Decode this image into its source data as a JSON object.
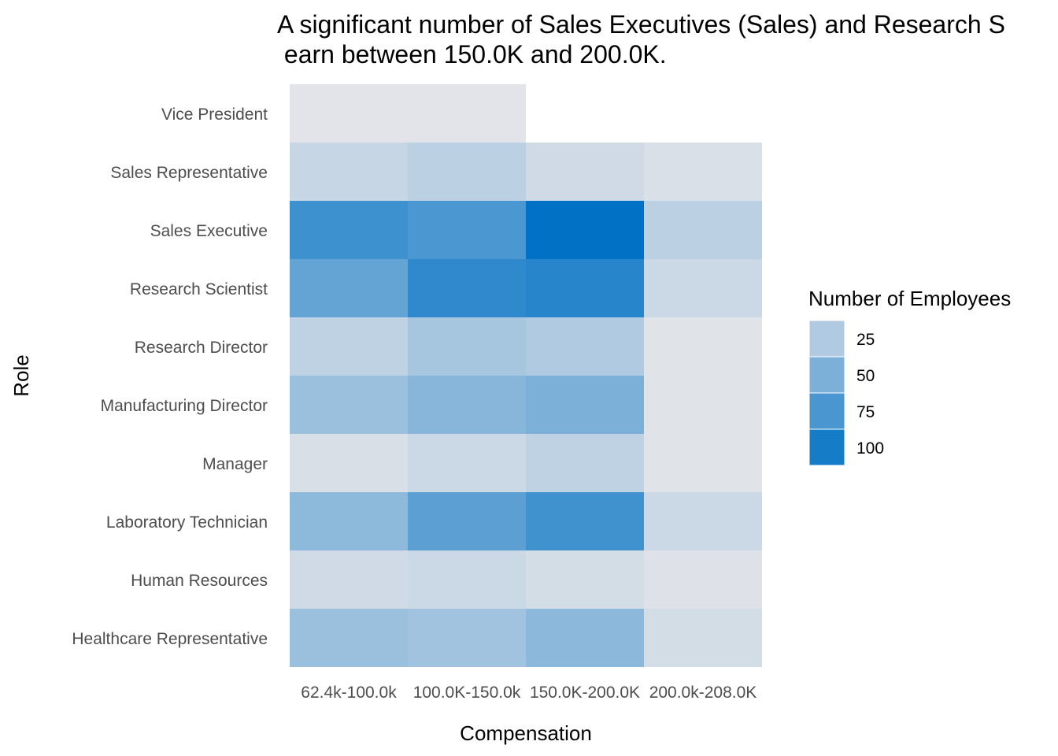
{
  "chart_data": {
    "type": "heatmap",
    "title_lines": [
      "A significant number of Sales Executives (Sales) and Research S",
      " earn between 150.0K and 200.0K."
    ],
    "xlabel": "Compensation",
    "ylabel": "Role",
    "x_categories": [
      "62.4k-100.0k",
      "100.0K-150.0k",
      "150.0K-200.0K",
      "200.0k-208.0K"
    ],
    "y_categories": [
      "Vice President",
      "Sales Representative",
      "Sales Executive",
      "Research Scientist",
      "Research Director",
      "Manufacturing Director",
      "Manager",
      "Laboratory Technician",
      "Human Resources",
      "Healthcare Representative"
    ],
    "values": [
      [
        1,
        1,
        null,
        null
      ],
      [
        14,
        20,
        10,
        5
      ],
      [
        80,
        74,
        110,
        20
      ],
      [
        62,
        87,
        91,
        12
      ],
      [
        18,
        30,
        25,
        2
      ],
      [
        35,
        45,
        50,
        2
      ],
      [
        6,
        12,
        18,
        2
      ],
      [
        42,
        66,
        79,
        12
      ],
      [
        10,
        12,
        8,
        3
      ],
      [
        35,
        32,
        43,
        8
      ]
    ],
    "legend": {
      "title": "Number of Employees",
      "breaks": [
        25,
        50,
        75,
        100
      ],
      "labels": [
        "25",
        "50",
        "75",
        "100"
      ],
      "position": "right"
    },
    "color_low": "#e4e5e9",
    "color_high": "#0071c5",
    "value_range": [
      0,
      110
    ],
    "grid": false
  }
}
